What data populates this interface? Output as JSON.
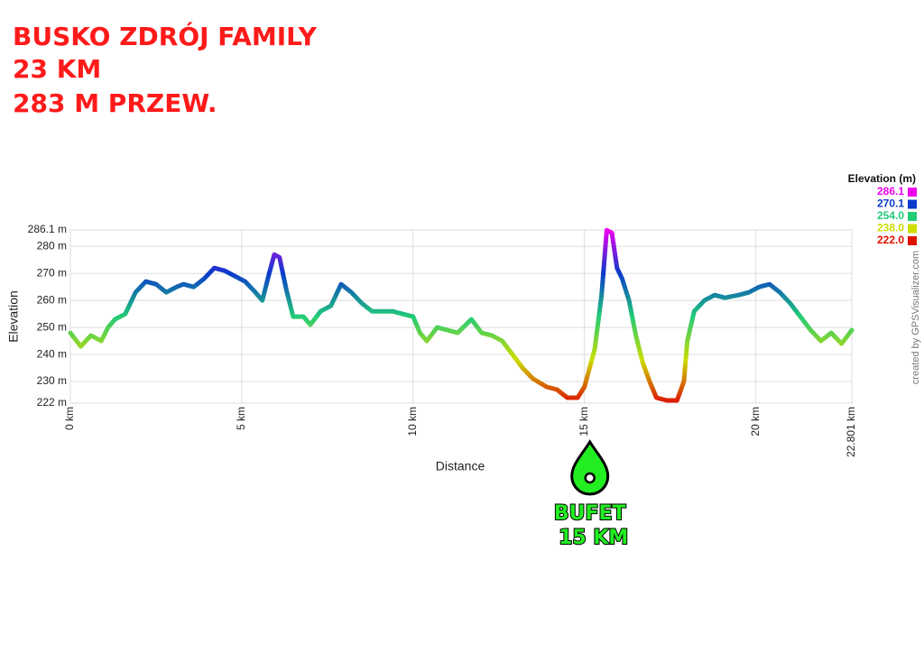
{
  "chart_data": {
    "type": "line",
    "title_lines": [
      "BUSKO ZDRÓJ FAMILY",
      "23 KM",
      "283 M PRZEW."
    ],
    "x_label": "Distance",
    "y_label": "Elevation",
    "credit": "created by GPSVisualizer.com",
    "annotation": {
      "x": 15,
      "lines": [
        "BUFET",
        "15 KM"
      ],
      "color": "#22ee22"
    },
    "grid": true,
    "xlim": [
      0,
      22.801
    ],
    "ylim": [
      222,
      286.1
    ],
    "xticks": [
      {
        "value": 0,
        "label": "0 km"
      },
      {
        "value": 5,
        "label": "5 km"
      },
      {
        "value": 10,
        "label": "10 km"
      },
      {
        "value": 15,
        "label": "15 km"
      },
      {
        "value": 20,
        "label": "20 km"
      },
      {
        "value": 22.801,
        "label": "22.801 km"
      }
    ],
    "yticks": [
      {
        "value": 222,
        "label": "222 m"
      },
      {
        "value": 230,
        "label": "230 m"
      },
      {
        "value": 240,
        "label": "240 m"
      },
      {
        "value": 250,
        "label": "250 m"
      },
      {
        "value": 260,
        "label": "260 m"
      },
      {
        "value": 270,
        "label": "270 m"
      },
      {
        "value": 280,
        "label": "280 m"
      },
      {
        "value": 286.1,
        "label": "286.1 m"
      }
    ],
    "legend": {
      "title": "Elevation (m)",
      "items": [
        {
          "value": 286.1,
          "label": "286.1",
          "color": "#ee00ee"
        },
        {
          "value": 270.1,
          "label": "270.1",
          "color": "#0a3acc"
        },
        {
          "value": 254,
          "label": "254.0",
          "color": "#22cc77"
        },
        {
          "value": 238,
          "label": "238.0",
          "color": "#ccdd00"
        },
        {
          "value": 222,
          "label": "222.0",
          "color": "#dd1100"
        }
      ]
    },
    "x": [
      0,
      0.3,
      0.6,
      0.9,
      1.1,
      1.3,
      1.6,
      1.9,
      2.2,
      2.5,
      2.8,
      3.1,
      3.3,
      3.6,
      3.9,
      4.2,
      4.5,
      4.8,
      5.1,
      5.4,
      5.6,
      5.8,
      5.95,
      6.1,
      6.3,
      6.5,
      6.8,
      7.0,
      7.3,
      7.6,
      7.9,
      8.2,
      8.5,
      8.8,
      9.1,
      9.4,
      9.7,
      10.0,
      10.2,
      10.4,
      10.7,
      11.0,
      11.3,
      11.7,
      12.0,
      12.3,
      12.6,
      12.9,
      13.2,
      13.5,
      13.9,
      14.2,
      14.5,
      14.8,
      15.0,
      15.3,
      15.5,
      15.65,
      15.8,
      15.95,
      16.1,
      16.3,
      16.5,
      16.7,
      16.9,
      17.1,
      17.4,
      17.7,
      17.9,
      18.0,
      18.2,
      18.5,
      18.8,
      19.1,
      19.5,
      19.8,
      20.1,
      20.4,
      20.7,
      21.0,
      21.3,
      21.6,
      21.9,
      22.2,
      22.5,
      22.801
    ],
    "series": [
      {
        "name": "Elevation (m)",
        "values": [
          248,
          243,
          247,
          245,
          250,
          253,
          255,
          263,
          267,
          266,
          263,
          265,
          266,
          265,
          268,
          272,
          271,
          269,
          267,
          263,
          260,
          270,
          277,
          276,
          264,
          254,
          254,
          251,
          256,
          258,
          266,
          263,
          259,
          256,
          256,
          256,
          255,
          254,
          248,
          245,
          250,
          249,
          248,
          253,
          248,
          247,
          245,
          240,
          235,
          231,
          228,
          227,
          224,
          224,
          228,
          242,
          262,
          286,
          285,
          272,
          268,
          260,
          247,
          237,
          230,
          224,
          223,
          223,
          230,
          245,
          256,
          260,
          262,
          261,
          262,
          263,
          265,
          266,
          263,
          259,
          254,
          249,
          245,
          248,
          244,
          249
        ]
      }
    ]
  }
}
